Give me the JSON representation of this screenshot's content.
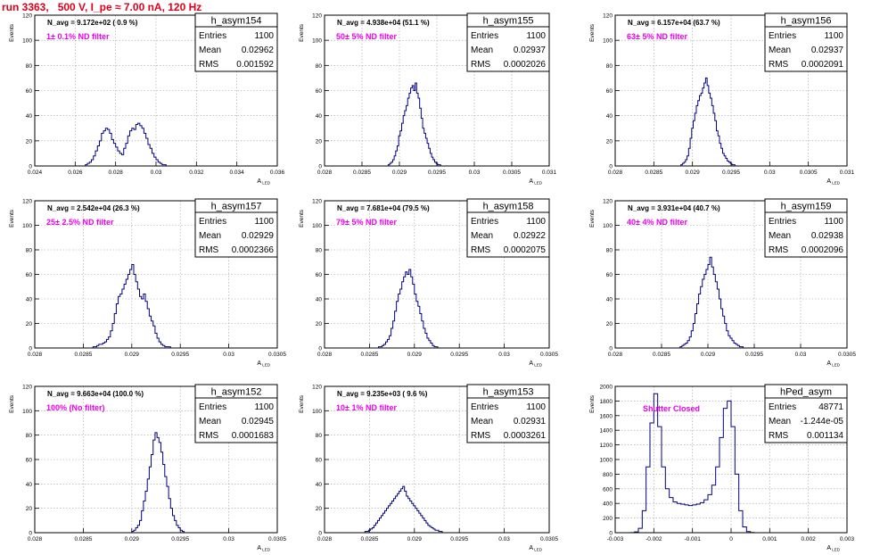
{
  "header": {
    "run_title": "run 3363,   500 V, I_pe ≈ 7.00 nA, 120 Hz"
  },
  "colors": {
    "histogram": "#000080",
    "annotation": "#ee00ee",
    "title": "#e0001b",
    "frame": "#000000",
    "grid": "#a0a0a0"
  },
  "stats_labels": [
    "Entries",
    "Mean",
    "RMS"
  ],
  "chart_data": [
    {
      "type": "histogram",
      "name": "h_asym154",
      "entries": "1100",
      "mean": "0.02962",
      "rms": "0.001592",
      "navg_text": "N_avg = 9.172e+02 ( 0.9 %)",
      "filter_text": "1± 0.1% ND filter",
      "xlabel": "A_LED",
      "ylabel": "Events",
      "xlim": [
        0.024,
        0.036
      ],
      "ylim": [
        0,
        120
      ],
      "xticks": [
        "0.024",
        "0.026",
        "0.028",
        "0.03",
        "0.032",
        "0.034",
        "0.036"
      ],
      "yticks": [
        "0",
        "20",
        "40",
        "60",
        "80",
        "100",
        "120"
      ],
      "grid": true,
      "bins": {
        "start": 0.0265,
        "width": 0.0001,
        "values": [
          1,
          2,
          3,
          5,
          8,
          12,
          16,
          20,
          26,
          28,
          30,
          29,
          26,
          21,
          18,
          15,
          12,
          10,
          9,
          14,
          18,
          24,
          28,
          30,
          29,
          33,
          34,
          32,
          30,
          26,
          22,
          17,
          14,
          10,
          7,
          5,
          3,
          2,
          1,
          1
        ]
      }
    },
    {
      "type": "histogram",
      "name": "h_asym155",
      "entries": "1100",
      "mean": "0.02937",
      "rms": "0.0002026",
      "navg_text": "N_avg = 4.938e+04 (51.1 %)",
      "filter_text": "50± 5% ND filter",
      "xlabel": "A_LED",
      "ylabel": "Events",
      "xlim": [
        0.028,
        0.031
      ],
      "ylim": [
        0,
        120
      ],
      "xticks": [
        "0.028",
        "0.0285",
        "0.029",
        "0.0295",
        "0.03",
        "0.0305",
        "0.031"
      ],
      "yticks": [
        "0",
        "20",
        "40",
        "60",
        "80",
        "100",
        "120"
      ],
      "grid": true,
      "bins": {
        "start": 0.02885,
        "width": 2e-05,
        "values": [
          1,
          2,
          3,
          5,
          8,
          12,
          16,
          24,
          28,
          34,
          40,
          44,
          48,
          54,
          58,
          62,
          64,
          60,
          66,
          58,
          54,
          46,
          38,
          30,
          26,
          22,
          18,
          14,
          10,
          7,
          5,
          3,
          2,
          1,
          1
        ]
      }
    },
    {
      "type": "histogram",
      "name": "h_asym156",
      "entries": "1100",
      "mean": "0.02937",
      "rms": "0.0002091",
      "navg_text": "N_avg = 6.157e+04 (63.7 %)",
      "filter_text": "63± 5% ND filter",
      "xlabel": "A_LED",
      "ylabel": "Events",
      "xlim": [
        0.028,
        0.031
      ],
      "ylim": [
        0,
        120
      ],
      "xticks": [
        "0.028",
        "0.0285",
        "0.029",
        "0.0295",
        "0.03",
        "0.0305",
        "0.031"
      ],
      "yticks": [
        "0",
        "20",
        "40",
        "60",
        "80",
        "100",
        "120"
      ],
      "grid": true,
      "bins": {
        "start": 0.02885,
        "width": 2e-05,
        "values": [
          1,
          2,
          3,
          5,
          8,
          14,
          22,
          30,
          36,
          42,
          48,
          52,
          56,
          58,
          62,
          66,
          70,
          64,
          58,
          54,
          48,
          42,
          36,
          28,
          24,
          18,
          14,
          10,
          8,
          6,
          4,
          3,
          2,
          1,
          1
        ]
      }
    },
    {
      "type": "histogram",
      "name": "h_asym157",
      "entries": "1100",
      "mean": "0.02929",
      "rms": "0.0002366",
      "navg_text": "N_avg = 2.542e+04 (26.3 %)",
      "filter_text": "25± 2.5% ND filter",
      "xlabel": "A_LED",
      "ylabel": "Events",
      "xlim": [
        0.028,
        0.0305
      ],
      "ylim": [
        0,
        120
      ],
      "xticks": [
        "0.028",
        "0.0285",
        "0.029",
        "0.0295",
        "0.03",
        "0.0305"
      ],
      "yticks": [
        "0",
        "20",
        "40",
        "60",
        "80",
        "100",
        "120"
      ],
      "grid": true,
      "bins": {
        "start": 0.0286,
        "width": 2e-05,
        "values": [
          1,
          1,
          2,
          3,
          3,
          4,
          5,
          7,
          9,
          14,
          20,
          28,
          36,
          42,
          44,
          48,
          52,
          56,
          60,
          64,
          68,
          60,
          54,
          48,
          42,
          40,
          44,
          38,
          32,
          26,
          22,
          18,
          12,
          8,
          5,
          3,
          2,
          1,
          1,
          1
        ]
      }
    },
    {
      "type": "histogram",
      "name": "h_asym158",
      "entries": "1100",
      "mean": "0.02922",
      "rms": "0.0002075",
      "navg_text": "N_avg = 7.681e+04 (79.5 %)",
      "filter_text": "79± 5% ND filter",
      "xlabel": "A_LED",
      "ylabel": "Events",
      "xlim": [
        0.028,
        0.0305
      ],
      "ylim": [
        0,
        120
      ],
      "xticks": [
        "0.028",
        "0.0285",
        "0.029",
        "0.0295",
        "0.03",
        "0.0305"
      ],
      "yticks": [
        "0",
        "20",
        "40",
        "60",
        "80",
        "100",
        "120"
      ],
      "grid": true,
      "bins": {
        "start": 0.0286,
        "width": 2e-05,
        "values": [
          1,
          1,
          2,
          3,
          5,
          7,
          10,
          16,
          22,
          30,
          38,
          44,
          48,
          54,
          58,
          62,
          60,
          64,
          58,
          52,
          44,
          38,
          34,
          28,
          22,
          16,
          12,
          8,
          6,
          4,
          2,
          1,
          1
        ]
      }
    },
    {
      "type": "histogram",
      "name": "h_asym159",
      "entries": "1100",
      "mean": "0.02938",
      "rms": "0.0002096",
      "navg_text": "N_avg = 3.931e+04 (40.7 %)",
      "filter_text": "40± 4% ND filter",
      "xlabel": "A_LED",
      "ylabel": "Events",
      "xlim": [
        0.028,
        0.0305
      ],
      "ylim": [
        0,
        120
      ],
      "xticks": [
        "0.028",
        "0.0285",
        "0.029",
        "0.0295",
        "0.03",
        "0.0305"
      ],
      "yticks": [
        "0",
        "20",
        "40",
        "60",
        "80",
        "100",
        "120"
      ],
      "grid": true,
      "bins": {
        "start": 0.0287,
        "width": 2e-05,
        "values": [
          1,
          2,
          3,
          4,
          6,
          9,
          14,
          20,
          28,
          36,
          44,
          50,
          56,
          60,
          64,
          68,
          74,
          66,
          60,
          54,
          48,
          40,
          32,
          26,
          20,
          14,
          10,
          8,
          6,
          4,
          3,
          2,
          1,
          1
        ]
      }
    },
    {
      "type": "histogram",
      "name": "h_asym152",
      "entries": "1100",
      "mean": "0.02945",
      "rms": "0.0001683",
      "navg_text": "N_avg = 9.663e+04 (100.0 %)",
      "filter_text": "100% (No filter)",
      "xlabel": "A_LED",
      "ylabel": "Events",
      "xlim": [
        0.028,
        0.0305
      ],
      "ylim": [
        0,
        120
      ],
      "xticks": [
        "0.028",
        "0.0285",
        "0.029",
        "0.0295",
        "0.03",
        "0.0305"
      ],
      "yticks": [
        "0",
        "20",
        "40",
        "60",
        "80",
        "100",
        "120"
      ],
      "grid": true,
      "bins": {
        "start": 0.029,
        "width": 2e-05,
        "values": [
          1,
          2,
          4,
          6,
          10,
          18,
          26,
          34,
          44,
          54,
          64,
          76,
          82,
          78,
          74,
          66,
          56,
          46,
          38,
          28,
          20,
          14,
          10,
          6,
          4,
          2,
          1
        ]
      }
    },
    {
      "type": "histogram",
      "name": "h_asym153",
      "entries": "1100",
      "mean": "0.02931",
      "rms": "0.0003261",
      "navg_text": "N_avg = 9.235e+03 ( 9.6 %)",
      "filter_text": "10± 1% ND filter",
      "xlabel": "A_LED",
      "ylabel": "Events",
      "xlim": [
        0.028,
        0.0305
      ],
      "ylim": [
        0,
        120
      ],
      "xticks": [
        "0.028",
        "0.0285",
        "0.029",
        "0.0295",
        "0.03",
        "0.0305"
      ],
      "yticks": [
        "0",
        "20",
        "40",
        "60",
        "80",
        "100",
        "120"
      ],
      "grid": true,
      "bins": {
        "start": 0.02845,
        "width": 2e-05,
        "values": [
          1,
          1,
          2,
          3,
          4,
          6,
          8,
          10,
          12,
          14,
          16,
          18,
          20,
          22,
          24,
          26,
          28,
          30,
          32,
          34,
          36,
          38,
          34,
          30,
          28,
          26,
          24,
          22,
          20,
          18,
          16,
          14,
          12,
          10,
          8,
          6,
          5,
          4,
          3,
          2,
          2,
          1,
          1
        ]
      }
    },
    {
      "type": "histogram",
      "name": "hPed_asym",
      "entries": "48771",
      "mean": "-1.244e-05",
      "rms": "0.001134",
      "navg_text": "",
      "filter_text": "Shutter Closed",
      "xlabel": "A_LED",
      "ylabel": "Events",
      "xlim": [
        -0.003,
        0.003
      ],
      "ylim": [
        0,
        2000
      ],
      "xticks": [
        "-0.003",
        "-0.002",
        "-0.001",
        "0",
        "0.001",
        "0.002",
        "0.003"
      ],
      "yticks": [
        "0",
        "200",
        "400",
        "600",
        "800",
        "1000",
        "1200",
        "1400",
        "1600",
        "1800",
        "2000"
      ],
      "grid": true,
      "bins": {
        "start": -0.0026,
        "width": 0.0001,
        "values": [
          2,
          10,
          60,
          300,
          900,
          1500,
          1900,
          1450,
          900,
          600,
          480,
          420,
          400,
          390,
          380,
          370,
          380,
          390,
          410,
          450,
          520,
          650,
          900,
          1300,
          1700,
          1800,
          1450,
          800,
          300,
          80,
          15,
          3
        ]
      }
    }
  ]
}
